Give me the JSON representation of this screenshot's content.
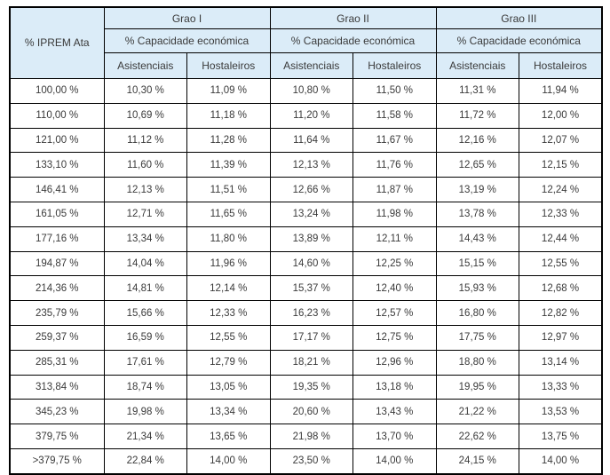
{
  "colors": {
    "header_bg": "#dbecf8",
    "border": "#000000",
    "text": "#3a3a3a",
    "cell_bg": "#ffffff"
  },
  "table": {
    "corner_header": "% IPREM\nAta",
    "groups": [
      {
        "label": "Grao I",
        "sublabel": "% Capacidade económica"
      },
      {
        "label": "Grao II",
        "sublabel": "% Capacidade económica"
      },
      {
        "label": "Grao III",
        "sublabel": "% Capacidade económica"
      }
    ],
    "col_headers": [
      "Asistenciais",
      "Hostaleiros"
    ],
    "rows": [
      [
        "100,00 %",
        "10,30 %",
        "11,09 %",
        "10,80 %",
        "11,50 %",
        "11,31 %",
        "11,94 %"
      ],
      [
        "110,00 %",
        "10,69 %",
        "11,18 %",
        "11,20 %",
        "11,58 %",
        "11,72 %",
        "12,00 %"
      ],
      [
        "121,00 %",
        "11,12 %",
        "11,28 %",
        "11,64 %",
        "11,67 %",
        "12,16 %",
        "12,07 %"
      ],
      [
        "133,10 %",
        "11,60 %",
        "11,39 %",
        "12,13 %",
        "11,76 %",
        "12,65 %",
        "12,15 %"
      ],
      [
        "146,41 %",
        "12,13 %",
        "11,51 %",
        "12,66 %",
        "11,87 %",
        "13,19 %",
        "12,24 %"
      ],
      [
        "161,05 %",
        "12,71 %",
        "11,65 %",
        "13,24 %",
        "11,98 %",
        "13,78 %",
        "12,33 %"
      ],
      [
        "177,16 %",
        "13,34 %",
        "11,80 %",
        "13,89 %",
        "12,11 %",
        "14,43 %",
        "12,44 %"
      ],
      [
        "194,87 %",
        "14,04 %",
        "11,96 %",
        "14,60 %",
        "12,25 %",
        "15,15 %",
        "12,55 %"
      ],
      [
        "214,36 %",
        "14,81 %",
        "12,14 %",
        "15,37 %",
        "12,40 %",
        "15,93 %",
        "12,68 %"
      ],
      [
        "235,79 %",
        "15,66 %",
        "12,33 %",
        "16,23 %",
        "12,57 %",
        "16,80 %",
        "12,82 %"
      ],
      [
        "259,37 %",
        "16,59 %",
        "12,55 %",
        "17,17 %",
        "12,75 %",
        "17,75 %",
        "12,97 %"
      ],
      [
        "285,31 %",
        "17,61 %",
        "12,79 %",
        "18,21 %",
        "12,96 %",
        "18,80 %",
        "13,14 %"
      ],
      [
        "313,84 %",
        "18,74 %",
        "13,05 %",
        "19,35 %",
        "13,18 %",
        "19,95 %",
        "13,33 %"
      ],
      [
        "345,23 %",
        "19,98 %",
        "13,34 %",
        "20,60 %",
        "13,43 %",
        "21,22 %",
        "13,53 %"
      ],
      [
        "379,75 %",
        "21,34 %",
        "13,65 %",
        "21,98 %",
        "13,70 %",
        "22,62 %",
        "13,75 %"
      ],
      [
        ">379,75 %",
        "22,84 %",
        "14,00 %",
        "23,50 %",
        "14,00 %",
        "24,15 %",
        "14,00 %"
      ]
    ]
  }
}
